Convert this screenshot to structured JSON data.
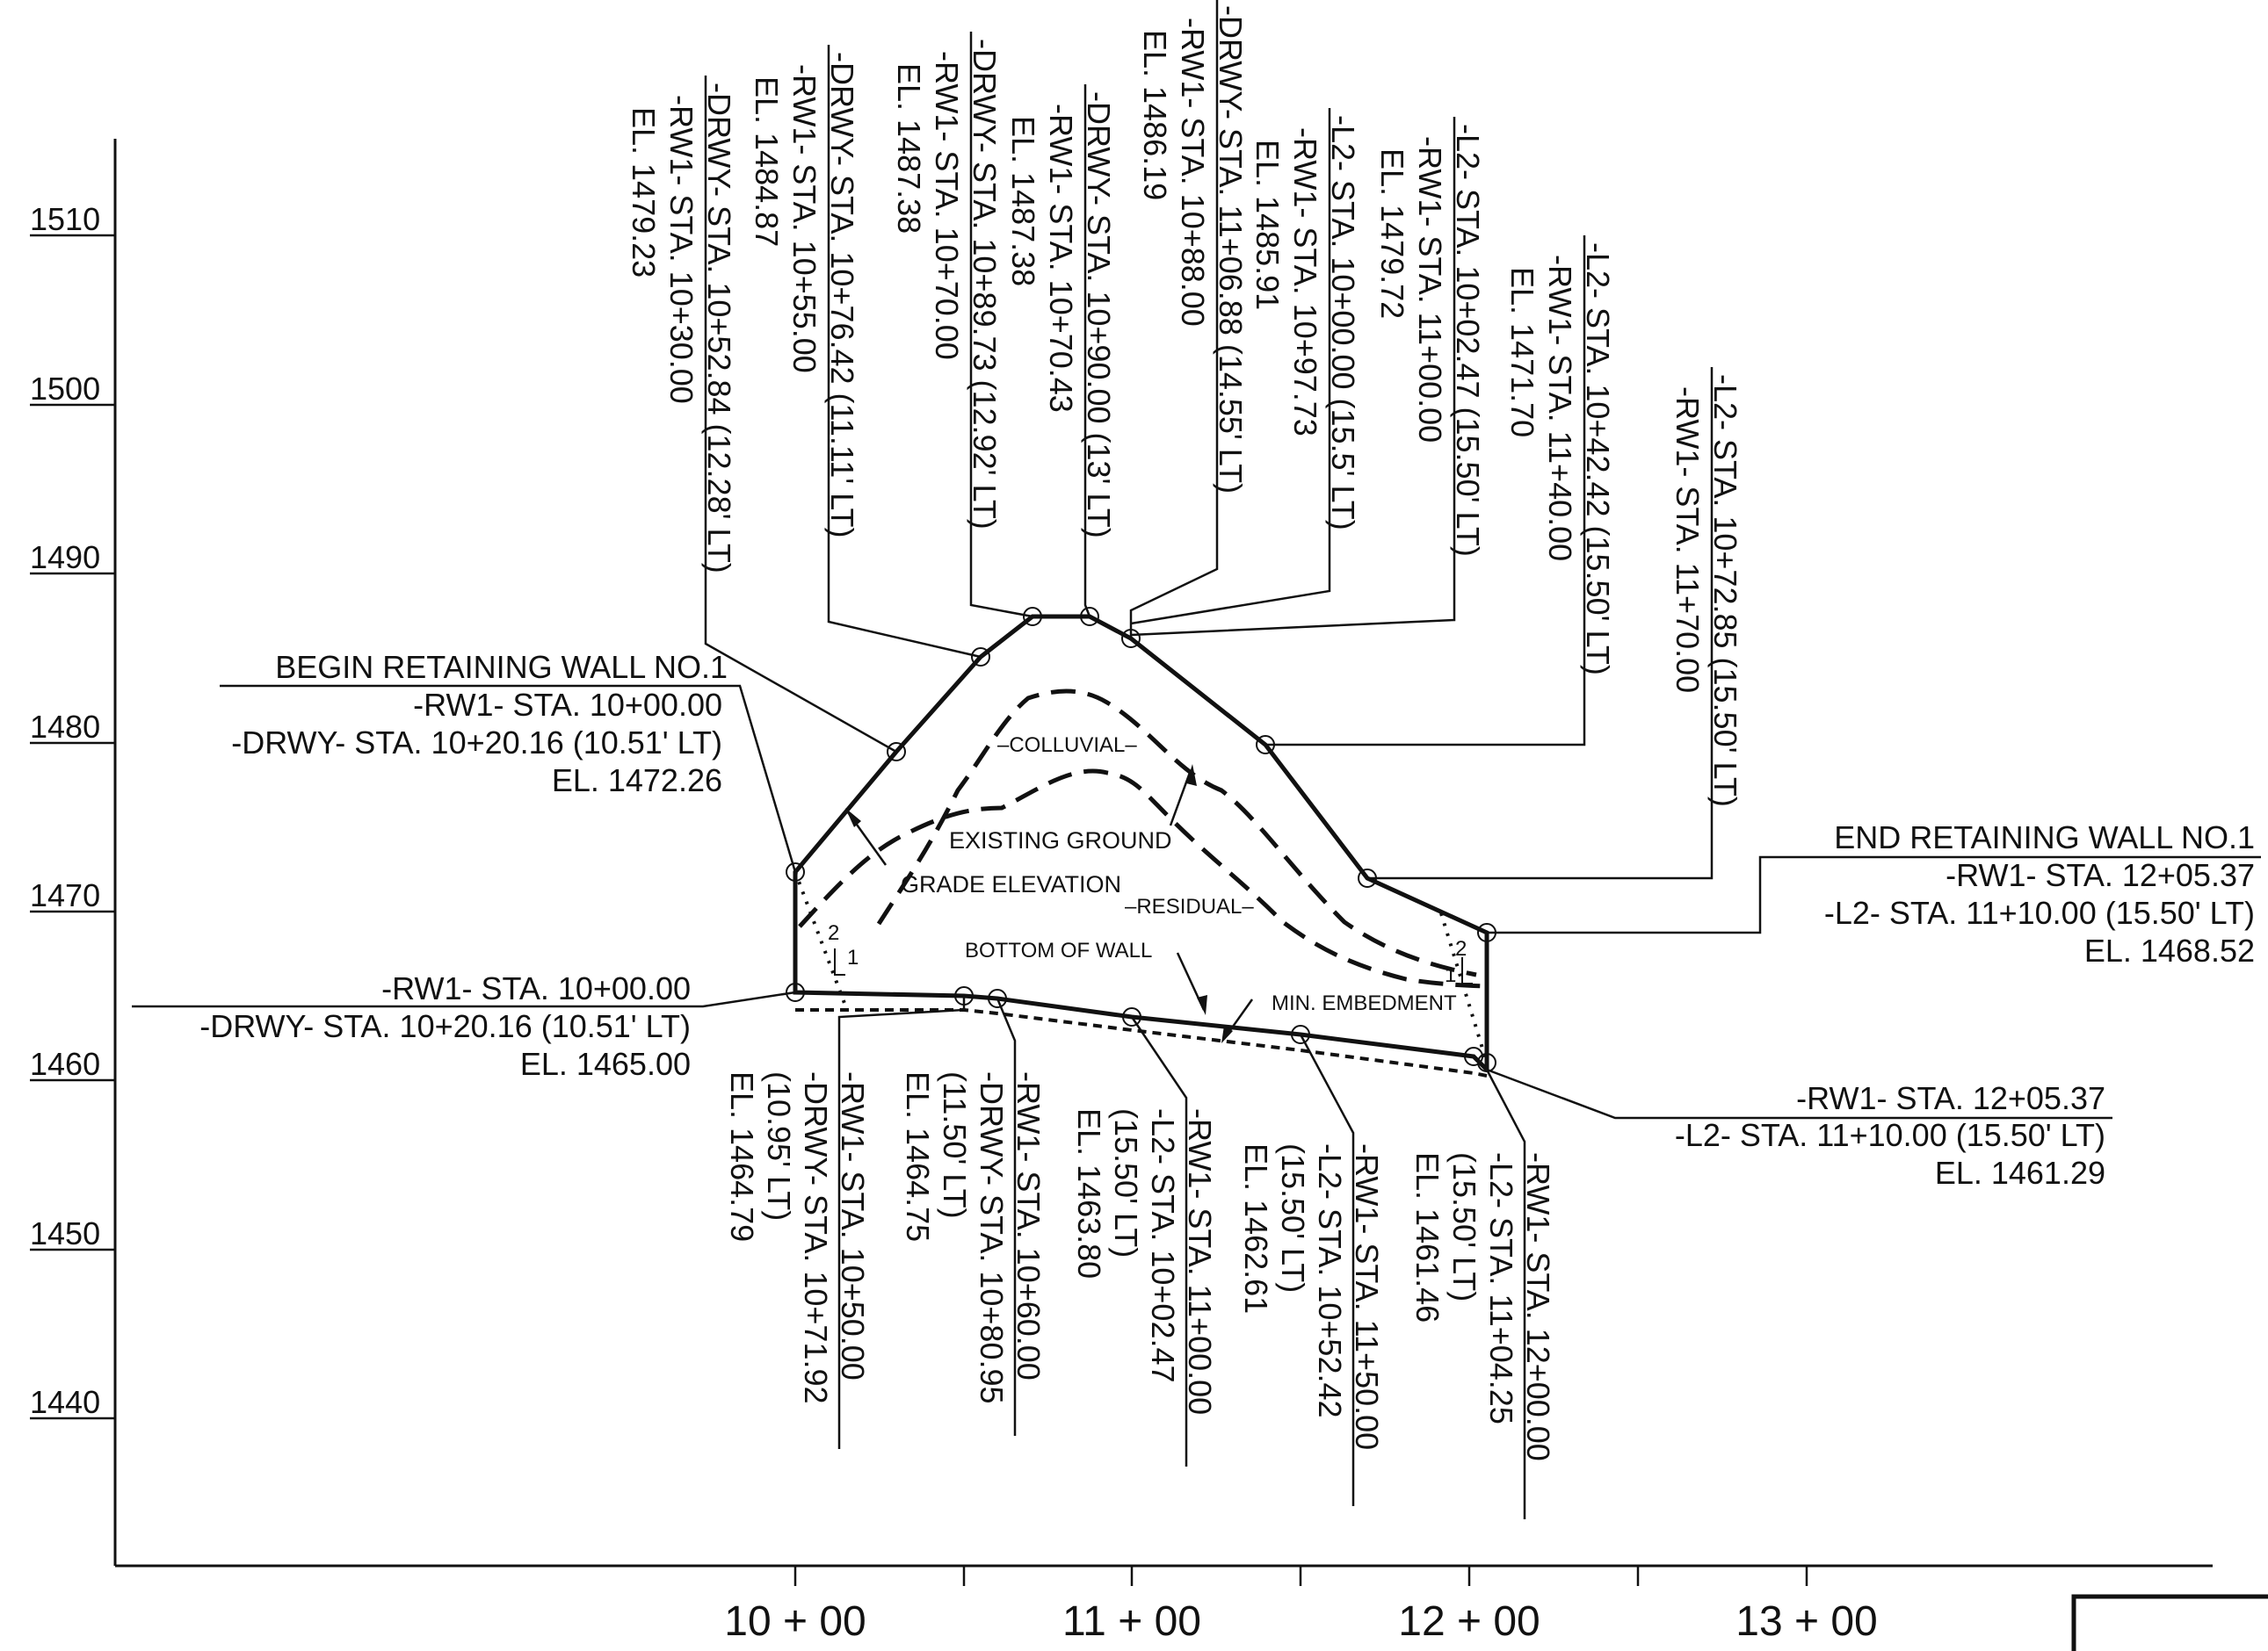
{
  "y_axis": {
    "ticks": [
      "1510",
      "1500",
      "1490",
      "1480",
      "1470",
      "1460",
      "1450",
      "1440"
    ]
  },
  "x_axis": {
    "ticks": [
      "10 + 00",
      "11 + 00",
      "12 + 00",
      "13 + 00"
    ]
  },
  "begin_label": [
    "BEGIN RETAINING WALL NO.1",
    "-RW1- STA. 10+00.00",
    "-DRWY- STA. 10+20.16 (10.51' LT)",
    "EL. 1472.26"
  ],
  "end_label": [
    "END RETAINING WALL NO.1",
    "-RW1- STA. 12+05.37",
    "-L2- STA. 11+10.00 (15.50' LT)",
    "EL. 1468.52"
  ],
  "bottom_left_label": [
    "-RW1- STA. 10+00.00",
    "-DRWY- STA. 10+20.16 (10.51' LT)",
    "EL. 1465.00"
  ],
  "bottom_right_label": [
    "-RW1- STA. 12+05.37",
    "-L2- STA.  11+10.00 (15.50' LT)",
    "EL. 1461.29"
  ],
  "top_callouts": [
    [
      "-DRWY- STA. 10+52.84 (12.28' LT)",
      "-RW1- STA. 10+30.00",
      "EL. 1479.23"
    ],
    [
      "-DRWY- STA. 10+76.42 (11.11' LT)",
      "-RW1- STA. 10+55.00",
      "EL. 1484.87"
    ],
    [
      "-DRWY- STA. 10+89.73 (12.92' LT)",
      "-RW1- STA. 10+70.00",
      "EL. 1487.38"
    ],
    [
      "-DRWY- STA. 10+90.00 (13' LT)",
      "-RW1- STA. 10+70.43",
      "EL. 1487.38"
    ],
    [
      "-DRWY- STA. 11+06.88 (14.55' LT)",
      "-RW1- STA. 10+88.00",
      "EL. 1486.19"
    ],
    [
      "-L2- STA. 10+00.00 (15.5' LT)",
      "-RW1- STA. 10+97.73",
      "EL. 1485.91"
    ],
    [
      "-L2- STA. 10+02.47 (15.50' LT)",
      "-RW1- STA. 11+00.00",
      "EL. 1479.72"
    ],
    [
      "-L2- STA. 10+42.42 (15.50' LT)",
      "-RW1- STA. 11+40.00",
      "EL. 1471.70"
    ],
    [
      "-L2- STA. 10+72.85 (15.50' LT)",
      "-RW1- STA. 11+70.00"
    ]
  ],
  "bottom_callouts": [
    [
      "-RW1- STA. 10+50.00",
      "-DRWY- STA. 10+71.92",
      "(10.95' LT)",
      "EL. 1464.79"
    ],
    [
      "-RW1- STA. 10+60.00",
      "-DRWY- STA. 10+80.95",
      "(11.50' LT)",
      "EL. 1464.75"
    ],
    [
      "-RW1- STA. 11+00.00",
      "-L2- STA. 10+02.47",
      "(15.50' LT)",
      "EL. 1463.80"
    ],
    [
      "-RW1- STA. 11+50.00",
      "-L2- STA. 10+52.42",
      "(15.50' LT)",
      "EL. 1462.61"
    ],
    [
      "-RW1- STA. 12+00.00",
      "-L2- STA. 11+04.25",
      "(15.50' LT)",
      "EL. 1461.46"
    ]
  ],
  "notes": {
    "colluvial": "–COLLUVIAL–",
    "existing_ground": "EXISTING   GROUND",
    "grade_elevation": "GRADE  ELEVATION",
    "residual": "–RESIDUAL–",
    "bottom_of_wall": "BOTTOM   OF  WALL",
    "min_embedment": "MIN. EMBEDMENT",
    "slope_rise": "2",
    "slope_run": "1"
  }
}
